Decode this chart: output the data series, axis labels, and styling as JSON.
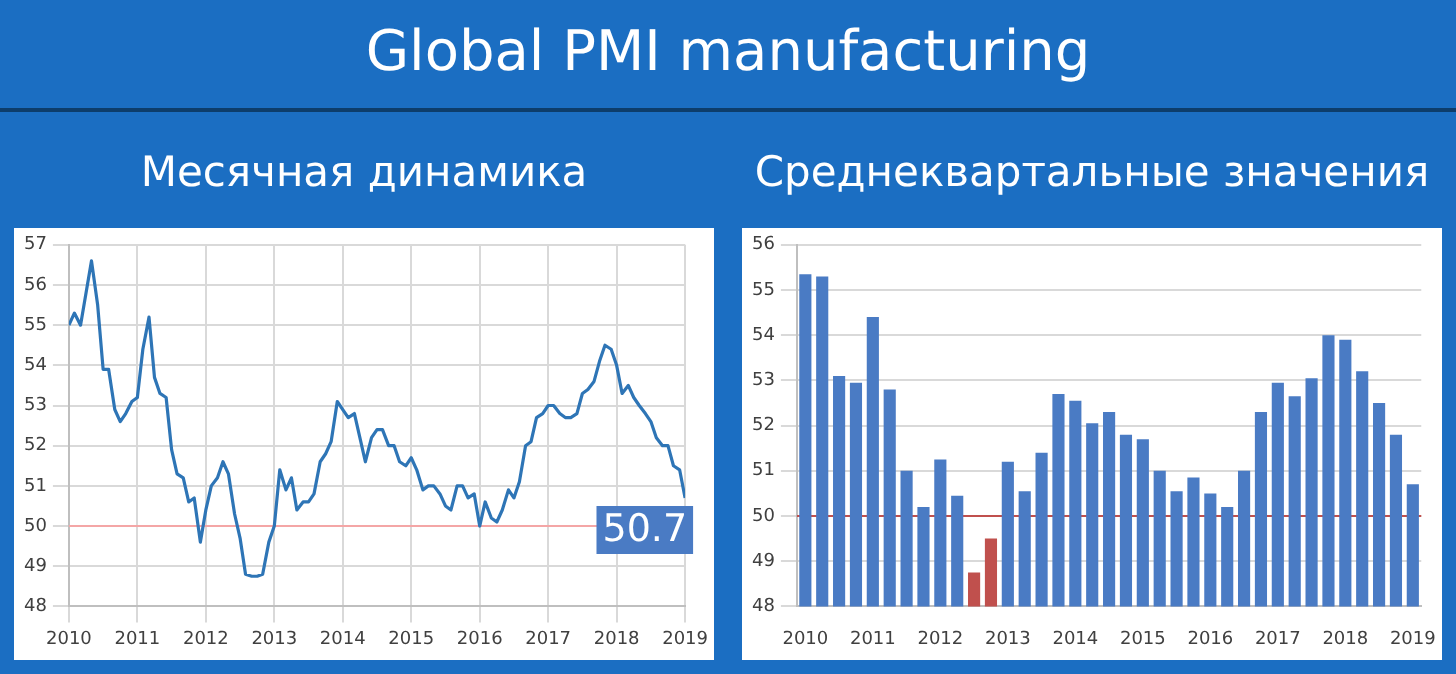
{
  "chart_data": [
    {
      "type": "line",
      "title": "Global PMI manufacturing",
      "subtitle": "Месячная динамика",
      "xlim": [
        2010,
        2019
      ],
      "xticks": [
        2010,
        2011,
        2012,
        2013,
        2014,
        2015,
        2016,
        2017,
        2018,
        2019
      ],
      "ylim": [
        48,
        57
      ],
      "yticks": [
        48,
        49,
        50,
        51,
        52,
        53,
        54,
        55,
        56,
        57
      ],
      "grid": true,
      "marker": "none",
      "x": [
        2010,
        2010.08,
        2010.17,
        2010.25,
        2010.33,
        2010.42,
        2010.5,
        2010.58,
        2010.67,
        2010.75,
        2010.83,
        2010.92,
        2011,
        2011.08,
        2011.17,
        2011.25,
        2011.33,
        2011.42,
        2011.5,
        2011.58,
        2011.67,
        2011.75,
        2011.83,
        2011.92,
        2012,
        2012.08,
        2012.17,
        2012.25,
        2012.33,
        2012.42,
        2012.5,
        2012.58,
        2012.67,
        2012.75,
        2012.83,
        2012.92,
        2013,
        2013.08,
        2013.17,
        2013.25,
        2013.33,
        2013.42,
        2013.5,
        2013.58,
        2013.67,
        2013.75,
        2013.83,
        2013.92,
        2014,
        2014.08,
        2014.17,
        2014.25,
        2014.33,
        2014.42,
        2014.5,
        2014.58,
        2014.67,
        2014.75,
        2014.83,
        2014.92,
        2015,
        2015.08,
        2015.17,
        2015.25,
        2015.33,
        2015.42,
        2015.5,
        2015.58,
        2015.67,
        2015.75,
        2015.83,
        2015.92,
        2016,
        2016.08,
        2016.17,
        2016.25,
        2016.33,
        2016.42,
        2016.5,
        2016.58,
        2016.67,
        2016.75,
        2016.83,
        2016.92,
        2017,
        2017.08,
        2017.17,
        2017.25,
        2017.33,
        2017.42,
        2017.5,
        2017.58,
        2017.67,
        2017.75,
        2017.83,
        2017.92,
        2018,
        2018.08,
        2018.17,
        2018.25,
        2018.33,
        2018.42,
        2018.5,
        2018.58,
        2018.67,
        2018.75,
        2018.83,
        2018.92,
        2019
      ],
      "series": [
        {
          "color": "#2e75b6",
          "values": [
            55.0,
            55.3,
            55.0,
            55.8,
            56.6,
            55.5,
            53.9,
            53.9,
            52.9,
            52.6,
            52.8,
            53.1,
            53.2,
            54.4,
            55.2,
            53.7,
            53.3,
            53.2,
            51.9,
            51.3,
            51.2,
            50.6,
            50.7,
            49.6,
            50.4,
            51.0,
            51.2,
            51.6,
            51.3,
            50.3,
            49.7,
            48.8,
            48.75,
            48.75,
            48.8,
            49.6,
            50.0,
            51.4,
            50.9,
            51.2,
            50.4,
            50.6,
            50.6,
            50.8,
            51.6,
            51.8,
            52.1,
            53.1,
            52.9,
            52.7,
            52.8,
            52.2,
            51.6,
            52.2,
            52.4,
            52.4,
            52.0,
            52.0,
            51.6,
            51.5,
            51.7,
            51.4,
            50.9,
            51.0,
            51.0,
            50.8,
            50.5,
            50.4,
            51.0,
            51.0,
            50.7,
            50.8,
            50.0,
            50.6,
            50.2,
            50.1,
            50.4,
            50.9,
            50.7,
            51.1,
            52.0,
            52.1,
            52.7,
            52.8,
            53.0,
            53.0,
            52.8,
            52.7,
            52.7,
            52.8,
            53.3,
            53.4,
            53.6,
            54.1,
            54.5,
            54.4,
            54.0,
            53.3,
            53.5,
            53.2,
            53.0,
            52.8,
            52.6,
            52.2,
            52.0,
            52.0,
            51.5,
            51.4,
            50.7
          ]
        }
      ],
      "ref_lines": [
        {
          "axis": "y",
          "value": 50,
          "color": "#f4a6a6"
        }
      ],
      "annotations": [
        {
          "text": "50.7",
          "x": 2019,
          "y": 50.7
        }
      ]
    },
    {
      "type": "bar",
      "subtitle": "Среднеквартальные значения",
      "ylim": [
        48,
        56
      ],
      "yticks": [
        48,
        49,
        50,
        51,
        52,
        53,
        54,
        55,
        56
      ],
      "grid": "y",
      "categories": [
        "2010",
        null,
        null,
        null,
        "2011",
        null,
        null,
        null,
        "2012",
        null,
        null,
        null,
        "2013",
        null,
        null,
        null,
        "2014",
        null,
        null,
        null,
        "2015",
        null,
        null,
        null,
        "2016",
        null,
        null,
        null,
        "2017",
        null,
        null,
        null,
        "2018",
        null,
        null,
        null,
        "2019"
      ],
      "values": [
        55.35,
        55.3,
        53.1,
        52.95,
        54.4,
        52.8,
        51.0,
        50.2,
        51.25,
        50.45,
        48.75,
        49.5,
        51.2,
        50.55,
        51.4,
        52.7,
        52.55,
        52.05,
        52.3,
        51.8,
        51.7,
        51.0,
        50.55,
        50.85,
        50.5,
        50.2,
        51.0,
        52.3,
        52.95,
        52.65,
        53.05,
        54.0,
        53.9,
        53.2,
        52.5,
        51.8,
        50.7
      ],
      "colors": [
        "#4a7bc4",
        "#4a7bc4",
        "#4a7bc4",
        "#4a7bc4",
        "#4a7bc4",
        "#4a7bc4",
        "#4a7bc4",
        "#4a7bc4",
        "#4a7bc4",
        "#4a7bc4",
        "#c0504d",
        "#c0504d",
        "#4a7bc4",
        "#4a7bc4",
        "#4a7bc4",
        "#4a7bc4",
        "#4a7bc4",
        "#4a7bc4",
        "#4a7bc4",
        "#4a7bc4",
        "#4a7bc4",
        "#4a7bc4",
        "#4a7bc4",
        "#4a7bc4",
        "#4a7bc4",
        "#4a7bc4",
        "#4a7bc4",
        "#4a7bc4",
        "#4a7bc4",
        "#4a7bc4",
        "#4a7bc4",
        "#4a7bc4",
        "#4a7bc4",
        "#4a7bc4",
        "#4a7bc4",
        "#4a7bc4",
        "#4a7bc4"
      ],
      "ref_lines": [
        {
          "axis": "y",
          "value": 50,
          "color": "#c0504d"
        }
      ]
    }
  ]
}
